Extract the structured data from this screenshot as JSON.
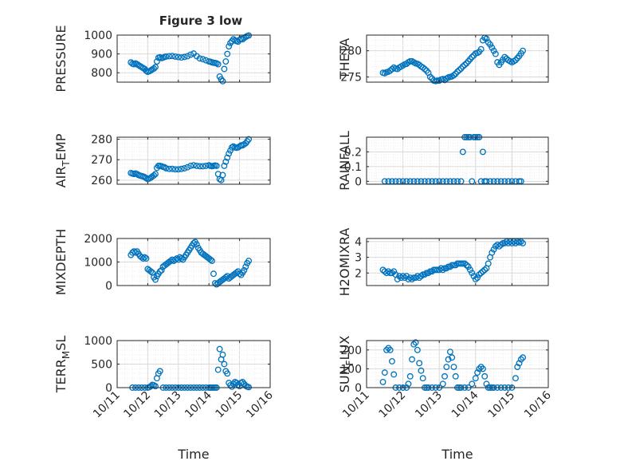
{
  "figure_title": "Figure 3 low",
  "chart_data": [
    {
      "type": "scatter",
      "ylabel": "PRESSURE",
      "xlabel": "",
      "ylim": [
        750,
        1000
      ],
      "yticks": [
        800,
        900,
        1000
      ],
      "xticks": [
        "10/11",
        "10/12",
        "10/13",
        "10/14",
        "10/15",
        "10/16"
      ],
      "grid": true,
      "x": [
        11.45,
        11.5,
        11.55,
        11.6,
        11.65,
        11.7,
        11.75,
        11.8,
        11.85,
        11.9,
        11.95,
        12.0,
        12.05,
        12.1,
        12.15,
        12.2,
        12.25,
        12.3,
        12.35,
        12.4,
        12.45,
        12.5,
        12.55,
        12.6,
        12.7,
        12.8,
        12.9,
        13.0,
        13.1,
        13.2,
        13.3,
        13.4,
        13.5,
        13.6,
        13.7,
        13.8,
        13.9,
        14.0,
        14.05,
        14.1,
        14.15,
        14.2,
        14.25,
        14.3,
        14.35,
        14.4,
        14.45,
        14.5,
        14.55,
        14.6,
        14.65,
        14.7,
        14.75,
        14.8,
        14.85,
        14.9,
        14.95,
        15.0,
        15.05,
        15.1,
        15.15,
        15.2,
        15.25,
        15.3
      ],
      "y": [
        855,
        848,
        845,
        850,
        845,
        840,
        835,
        830,
        825,
        820,
        810,
        805,
        808,
        812,
        818,
        822,
        830,
        860,
        880,
        882,
        878,
        880,
        884,
        886,
        888,
        889,
        886,
        883,
        881,
        884,
        888,
        896,
        902,
        888,
        876,
        872,
        866,
        860,
        858,
        855,
        853,
        852,
        850,
        845,
        780,
        765,
        755,
        820,
        860,
        900,
        940,
        958,
        968,
        978,
        972,
        968,
        965,
        975,
        980,
        978,
        985,
        990,
        995,
        998
      ]
    },
    {
      "type": "scatter",
      "ylabel": "THETA",
      "xlabel": "",
      "ylim": [
        274,
        283
      ],
      "yticks": [
        275,
        280
      ],
      "xticks": [
        "10/11",
        "10/12",
        "10/13",
        "10/14",
        "10/15",
        "10/16"
      ],
      "grid": true,
      "x": [
        11.45,
        11.5,
        11.55,
        11.6,
        11.65,
        11.7,
        11.75,
        11.8,
        11.85,
        11.9,
        11.95,
        12.0,
        12.05,
        12.1,
        12.15,
        12.2,
        12.25,
        12.3,
        12.35,
        12.4,
        12.45,
        12.5,
        12.55,
        12.6,
        12.65,
        12.7,
        12.75,
        12.8,
        12.85,
        12.9,
        12.95,
        13.0,
        13.05,
        13.1,
        13.15,
        13.2,
        13.25,
        13.3,
        13.35,
        13.4,
        13.45,
        13.5,
        13.55,
        13.6,
        13.65,
        13.7,
        13.75,
        13.8,
        13.85,
        13.9,
        13.95,
        14.0,
        14.05,
        14.1,
        14.15,
        14.2,
        14.25,
        14.3,
        14.35,
        14.4,
        14.45,
        14.5,
        14.55,
        14.6,
        14.65,
        14.7,
        14.75,
        14.8,
        14.85,
        14.9,
        14.95,
        15.0,
        15.05,
        15.1,
        15.15,
        15.2,
        15.25,
        15.3
      ],
      "y": [
        275.8,
        275.7,
        275.9,
        276.0,
        276.2,
        276.5,
        276.8,
        276.6,
        276.5,
        276.8,
        277.0,
        277.2,
        277.4,
        277.5,
        277.8,
        278.0,
        278.0,
        277.8,
        277.6,
        277.5,
        277.3,
        277.0,
        276.8,
        276.5,
        276.2,
        275.8,
        275.0,
        274.7,
        274.3,
        274.2,
        274.3,
        274.3,
        274.5,
        274.6,
        274.4,
        274.7,
        274.9,
        275.0,
        275.1,
        275.3,
        275.6,
        276.0,
        276.3,
        276.6,
        277.0,
        277.3,
        277.6,
        278.0,
        278.4,
        278.8,
        279.1,
        279.5,
        279.6,
        279.8,
        280.3,
        282.0,
        282.5,
        282.3,
        281.6,
        281.2,
        280.6,
        280.0,
        279.4,
        277.8,
        277.3,
        277.8,
        278.3,
        278.8,
        278.5,
        278.2,
        278.0,
        277.8,
        278.0,
        278.2,
        278.6,
        279.0,
        279.5,
        280.0
      ]
    },
    {
      "type": "scatter",
      "ylabel": "AIR_TEMP",
      "xlabel": "",
      "ylim": [
        258,
        281
      ],
      "yticks": [
        260,
        270,
        280
      ],
      "xticks": [
        "10/11",
        "10/12",
        "10/13",
        "10/14",
        "10/15",
        "10/16"
      ],
      "grid": true,
      "x": [
        11.45,
        11.5,
        11.55,
        11.6,
        11.65,
        11.7,
        11.75,
        11.8,
        11.85,
        11.9,
        11.95,
        12.0,
        12.05,
        12.1,
        12.15,
        12.2,
        12.25,
        12.3,
        12.35,
        12.4,
        12.45,
        12.5,
        12.55,
        12.6,
        12.7,
        12.8,
        12.9,
        13.0,
        13.1,
        13.2,
        13.3,
        13.4,
        13.5,
        13.6,
        13.7,
        13.8,
        13.9,
        14.0,
        14.05,
        14.1,
        14.15,
        14.2,
        14.25,
        14.3,
        14.35,
        14.4,
        14.45,
        14.5,
        14.55,
        14.6,
        14.65,
        14.7,
        14.75,
        14.8,
        14.85,
        14.9,
        14.95,
        15.0,
        15.05,
        15.1,
        15.15,
        15.2,
        15.25,
        15.3
      ],
      "y": [
        263.5,
        263.2,
        263.0,
        263.3,
        263.0,
        262.5,
        262.2,
        262.0,
        261.8,
        261.5,
        261.0,
        260.5,
        260.8,
        261.2,
        261.8,
        262.3,
        263.0,
        266.0,
        267.0,
        267.0,
        266.8,
        266.5,
        266.3,
        265.8,
        265.5,
        265.5,
        265.3,
        265.3,
        265.5,
        265.8,
        266.3,
        267.0,
        267.3,
        267.0,
        266.8,
        266.8,
        267.0,
        267.3,
        267.0,
        266.8,
        267.0,
        267.2,
        267.0,
        263.0,
        260.5,
        260.0,
        262.5,
        267.0,
        269.0,
        271.0,
        273.0,
        274.5,
        276.0,
        276.5,
        276.0,
        275.8,
        276.0,
        276.5,
        277.0,
        277.0,
        277.5,
        278.0,
        279.0,
        280.0
      ]
    },
    {
      "type": "scatter",
      "ylabel": "RAINFALL",
      "xlabel": "",
      "ylim": [
        -0.02,
        0.3
      ],
      "yticks": [
        0,
        0.1,
        0.2
      ],
      "xticks": [
        "10/11",
        "10/12",
        "10/13",
        "10/14",
        "10/15",
        "10/16"
      ],
      "grid": true,
      "x": [
        11.5,
        11.6,
        11.7,
        11.8,
        11.9,
        12.0,
        12.1,
        12.2,
        12.3,
        12.4,
        12.5,
        12.6,
        12.7,
        12.8,
        12.9,
        13.0,
        13.1,
        13.2,
        13.3,
        13.4,
        13.5,
        13.6,
        13.65,
        13.7,
        13.75,
        13.8,
        13.85,
        13.9,
        13.95,
        14.0,
        14.05,
        14.1,
        14.15,
        14.2,
        14.25,
        14.3,
        14.4,
        14.5,
        14.6,
        14.7,
        14.8,
        14.9,
        15.0,
        15.1,
        15.2,
        15.25
      ],
      "y": [
        0,
        0,
        0,
        0,
        0,
        0,
        0,
        0,
        0,
        0,
        0,
        0,
        0,
        0,
        0,
        0,
        0,
        0,
        0,
        0,
        0,
        0,
        0.2,
        0.3,
        0.3,
        0.3,
        0.3,
        0,
        0.3,
        0.3,
        0.3,
        0.3,
        0,
        0.2,
        0,
        0,
        0,
        0,
        0,
        0,
        0,
        0,
        0,
        0,
        0,
        0
      ]
    },
    {
      "type": "scatter",
      "ylabel": "MIXDEPTH",
      "xlabel": "",
      "ylim": [
        0,
        2000
      ],
      "yticks": [
        0,
        1000,
        2000
      ],
      "xticks": [
        "10/11",
        "10/12",
        "10/13",
        "10/14",
        "10/15",
        "10/16"
      ],
      "grid": true,
      "x": [
        11.45,
        11.5,
        11.55,
        11.6,
        11.65,
        11.7,
        11.75,
        11.8,
        11.85,
        11.9,
        11.95,
        12.0,
        12.05,
        12.1,
        12.15,
        12.2,
        12.25,
        12.3,
        12.35,
        12.4,
        12.45,
        12.5,
        12.55,
        12.6,
        12.65,
        12.7,
        12.75,
        12.8,
        12.85,
        12.9,
        12.95,
        13.0,
        13.05,
        13.1,
        13.15,
        13.2,
        13.25,
        13.3,
        13.35,
        13.4,
        13.45,
        13.5,
        13.55,
        13.6,
        13.65,
        13.7,
        13.75,
        13.8,
        13.85,
        13.9,
        13.95,
        14.0,
        14.05,
        14.1,
        14.15,
        14.2,
        14.25,
        14.3,
        14.35,
        14.4,
        14.45,
        14.5,
        14.55,
        14.6,
        14.65,
        14.7,
        14.75,
        14.8,
        14.85,
        14.9,
        14.95,
        15.0,
        15.05,
        15.1,
        15.15,
        15.2,
        15.25,
        15.3
      ],
      "y": [
        1300,
        1400,
        1450,
        1400,
        1450,
        1350,
        1250,
        1200,
        1150,
        1200,
        1150,
        700,
        650,
        600,
        550,
        350,
        250,
        400,
        500,
        600,
        650,
        800,
        850,
        900,
        950,
        1000,
        1050,
        1100,
        1050,
        1100,
        1150,
        1100,
        1200,
        1150,
        1100,
        1200,
        1300,
        1400,
        1500,
        1600,
        1700,
        1800,
        1850,
        1750,
        1600,
        1500,
        1400,
        1350,
        1300,
        1250,
        1200,
        1150,
        1100,
        1050,
        500,
        100,
        50,
        100,
        150,
        200,
        250,
        300,
        350,
        400,
        300,
        350,
        400,
        450,
        500,
        550,
        600,
        500,
        450,
        550,
        650,
        800,
        950,
        1050
      ]
    },
    {
      "type": "scatter",
      "ylabel": "H2OMIXRA",
      "xlabel": "",
      "ylim": [
        1.2,
        4.2
      ],
      "yticks": [
        2,
        3,
        4
      ],
      "xticks": [
        "10/11",
        "10/12",
        "10/13",
        "10/14",
        "10/15",
        "10/16"
      ],
      "grid": true,
      "x": [
        11.45,
        11.5,
        11.55,
        11.6,
        11.65,
        11.7,
        11.75,
        11.8,
        11.85,
        11.9,
        11.95,
        12.0,
        12.05,
        12.1,
        12.15,
        12.2,
        12.25,
        12.3,
        12.35,
        12.4,
        12.45,
        12.5,
        12.55,
        12.6,
        12.65,
        12.7,
        12.75,
        12.8,
        12.85,
        12.9,
        12.95,
        13.0,
        13.05,
        13.1,
        13.15,
        13.2,
        13.25,
        13.3,
        13.35,
        13.4,
        13.45,
        13.5,
        13.55,
        13.6,
        13.65,
        13.7,
        13.75,
        13.8,
        13.85,
        13.9,
        13.95,
        14.0,
        14.05,
        14.1,
        14.15,
        14.2,
        14.25,
        14.3,
        14.35,
        14.4,
        14.45,
        14.5,
        14.55,
        14.6,
        14.65,
        14.7,
        14.75,
        14.8,
        14.85,
        14.9,
        14.95,
        15.0,
        15.05,
        15.1,
        15.15,
        15.2,
        15.25,
        15.3
      ],
      "y": [
        2.2,
        2.1,
        2.0,
        2.1,
        2.0,
        2.0,
        2.1,
        1.9,
        1.6,
        1.8,
        1.7,
        1.8,
        1.7,
        1.8,
        1.6,
        1.7,
        1.6,
        1.7,
        1.7,
        1.8,
        1.7,
        1.8,
        1.9,
        1.9,
        2.0,
        2.0,
        2.1,
        2.1,
        2.2,
        2.2,
        2.2,
        2.2,
        2.3,
        2.2,
        2.3,
        2.3,
        2.4,
        2.4,
        2.5,
        2.5,
        2.5,
        2.6,
        2.6,
        2.6,
        2.6,
        2.6,
        2.5,
        2.4,
        2.2,
        2.0,
        1.8,
        1.6,
        1.7,
        1.9,
        2.0,
        2.1,
        2.2,
        2.3,
        2.6,
        3.0,
        3.3,
        3.5,
        3.7,
        3.8,
        3.7,
        3.8,
        3.9,
        3.9,
        4.0,
        3.9,
        4.0,
        3.9,
        4.0,
        3.9,
        4.0,
        3.95,
        4.0,
        3.9
      ]
    },
    {
      "type": "scatter",
      "ylabel": "TERR_MSL",
      "xlabel": "Time",
      "ylim": [
        0,
        1000
      ],
      "yticks": [
        0,
        500,
        1000
      ],
      "xticks": [
        "10/11",
        "10/12",
        "10/13",
        "10/14",
        "10/15",
        "10/16"
      ],
      "grid": true,
      "x": [
        11.5,
        11.6,
        11.7,
        11.8,
        11.9,
        12.0,
        12.05,
        12.1,
        12.15,
        12.2,
        12.25,
        12.3,
        12.35,
        12.4,
        12.5,
        12.6,
        12.7,
        12.8,
        12.9,
        13.0,
        13.1,
        13.2,
        13.3,
        13.4,
        13.5,
        13.6,
        13.7,
        13.8,
        13.9,
        14.0,
        14.05,
        14.1,
        14.15,
        14.2,
        14.25,
        14.3,
        14.35,
        14.4,
        14.45,
        14.5,
        14.55,
        14.6,
        14.65,
        14.7,
        14.75,
        14.8,
        14.85,
        14.9,
        14.95,
        15.0,
        15.05,
        15.1,
        15.15,
        15.2,
        15.25,
        15.3
      ],
      "y": [
        0,
        0,
        0,
        0,
        0,
        0,
        10,
        30,
        60,
        50,
        30,
        200,
        300,
        350,
        0,
        0,
        0,
        0,
        0,
        0,
        0,
        0,
        0,
        0,
        0,
        0,
        0,
        0,
        0,
        0,
        0,
        0,
        0,
        0,
        0,
        380,
        820,
        600,
        700,
        500,
        350,
        300,
        100,
        50,
        20,
        80,
        120,
        100,
        60,
        30,
        100,
        120,
        80,
        40,
        20,
        10
      ]
    },
    {
      "type": "scatter",
      "ylabel": "SUN_FLUX",
      "xlabel": "Time",
      "ylim": [
        0,
        250
      ],
      "yticks": [
        0,
        100,
        200
      ],
      "xticks": [
        "10/11",
        "10/12",
        "10/13",
        "10/14",
        "10/15",
        "10/16"
      ],
      "grid": true,
      "x": [
        11.45,
        11.5,
        11.55,
        11.6,
        11.65,
        11.7,
        11.75,
        11.8,
        11.9,
        12.0,
        12.1,
        12.15,
        12.2,
        12.25,
        12.3,
        12.35,
        12.4,
        12.45,
        12.5,
        12.55,
        12.6,
        12.65,
        12.7,
        12.8,
        12.9,
        13.0,
        13.1,
        13.15,
        13.2,
        13.25,
        13.3,
        13.35,
        13.4,
        13.45,
        13.5,
        13.55,
        13.6,
        13.7,
        13.8,
        13.9,
        14.0,
        14.05,
        14.1,
        14.15,
        14.2,
        14.25,
        14.3,
        14.35,
        14.4,
        14.45,
        14.5,
        14.6,
        14.7,
        14.8,
        14.9,
        15.0,
        15.1,
        15.15,
        15.2,
        15.25,
        15.3
      ],
      "y": [
        30,
        80,
        200,
        210,
        200,
        140,
        70,
        0,
        0,
        0,
        0,
        20,
        60,
        150,
        230,
        240,
        200,
        130,
        90,
        50,
        0,
        0,
        0,
        0,
        0,
        0,
        20,
        60,
        110,
        150,
        190,
        160,
        110,
        60,
        0,
        0,
        0,
        0,
        0,
        20,
        50,
        80,
        100,
        110,
        100,
        60,
        20,
        0,
        0,
        0,
        0,
        0,
        0,
        0,
        0,
        0,
        50,
        110,
        130,
        150,
        160
      ]
    }
  ]
}
